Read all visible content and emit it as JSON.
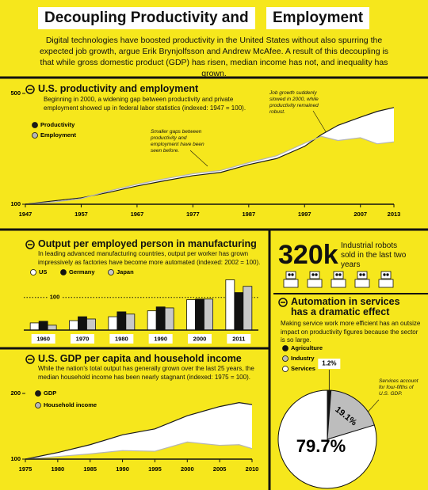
{
  "header": {
    "title": [
      "Decoupling Productivity and",
      "Employment"
    ],
    "intro": "Digital technologies have boosted productivity in the United States without also spurring the expected job growth, argue Erik Brynjolfsson and Andrew McAfee. A result of this decoupling is that while gross domestic product (GDP) has risen, median income has not, and inequality has grown."
  },
  "robots": {
    "figure": "320k",
    "text": "Industrial robots sold in the last two years"
  },
  "chart_data": [
    {
      "type": "line",
      "title": "U.S. productivity and employment",
      "subtitle": "Beginning in 2000, a widening gap between productivity and private employment showed up in federal labor statistics (indexed: 1947 = 100).",
      "annotations": [
        "Smaller gaps between productivity and employment have been seen before.",
        "Job growth suddenly slowed in 2000, while productivity remained robust."
      ],
      "x": [
        1947,
        1952,
        1957,
        1962,
        1967,
        1972,
        1977,
        1982,
        1987,
        1992,
        1997,
        2000,
        2003,
        2007,
        2010,
        2013
      ],
      "series": [
        {
          "name": "Productivity",
          "color": "#1a1a1a",
          "values": [
            100,
            112,
            123,
            143,
            166,
            185,
            203,
            215,
            243,
            265,
            309,
            351,
            385,
            414,
            435,
            449
          ]
        },
        {
          "name": "Employment",
          "color": "#b5b5b5",
          "values": [
            100,
            108,
            120,
            148,
            172,
            192,
            210,
            222,
            250,
            275,
            320,
            345,
            330,
            340,
            318,
            325
          ]
        }
      ],
      "xlim": [
        1947,
        2013
      ],
      "xticks": [
        1947,
        1957,
        1967,
        1977,
        1987,
        1997,
        2007,
        2013
      ],
      "ylim": [
        100,
        500
      ],
      "yticks": [
        100,
        500
      ]
    },
    {
      "type": "bar",
      "title": "Output per employed person in manufacturing",
      "subtitle": "In leading advanced manufacturing countries, output per worker has grown impressively as factories have become more automated (indexed: 2002 = 100).",
      "categories": [
        "1960",
        "1970",
        "1980",
        "1990",
        "2000",
        "2011"
      ],
      "series": [
        {
          "name": "US",
          "color": "#ffffff",
          "values": [
            22,
            29,
            41,
            59,
            93,
            154
          ]
        },
        {
          "name": "Germany",
          "color": "#111111",
          "values": [
            27,
            41,
            56,
            71,
            95,
            115
          ]
        },
        {
          "name": "Japan",
          "color": "#c8c8c8",
          "values": [
            15,
            34,
            49,
            68,
            95,
            134
          ]
        }
      ],
      "ylim": [
        0,
        160
      ],
      "reference": 100
    },
    {
      "type": "line",
      "title": "U.S. GDP per capita and household income",
      "subtitle": "While the nation's total output has generally grown over the last 25 years, the median household income has been nearly stagnant (indexed: 1975 = 100).",
      "x": [
        1975,
        1980,
        1985,
        1990,
        1995,
        2000,
        2005,
        2008,
        2010
      ],
      "series": [
        {
          "name": "GDP",
          "color": "#1a1a1a",
          "values": [
            100,
            110,
            122,
            137,
            146,
            166,
            180,
            186,
            183
          ]
        },
        {
          "name": "Household income",
          "color": "#b5b5b5",
          "values": [
            100,
            104,
            108,
            113,
            112,
            126,
            121,
            122,
            116
          ]
        }
      ],
      "xlim": [
        1975,
        2010
      ],
      "xticks": [
        1975,
        1980,
        1985,
        1990,
        1995,
        2000,
        2005,
        2010
      ],
      "ylim": [
        100,
        200
      ],
      "yticks": [
        100,
        200
      ]
    },
    {
      "type": "pie",
      "title": "Automation in services has a dramatic effect",
      "subtitle": "Making service work more efficient has an outsize impact on productivity figures because the sector is so large.",
      "annotations": [
        "Services account for four-fifths of U.S. GDP."
      ],
      "categories": [
        "Agriculture",
        "Industry",
        "Services"
      ],
      "values": [
        1.2,
        19.1,
        79.7
      ],
      "value_labels": [
        "1.2%",
        "19.1%",
        "79.7%"
      ],
      "colors": [
        "#111111",
        "#bdbdbd",
        "#ffffff"
      ]
    }
  ]
}
